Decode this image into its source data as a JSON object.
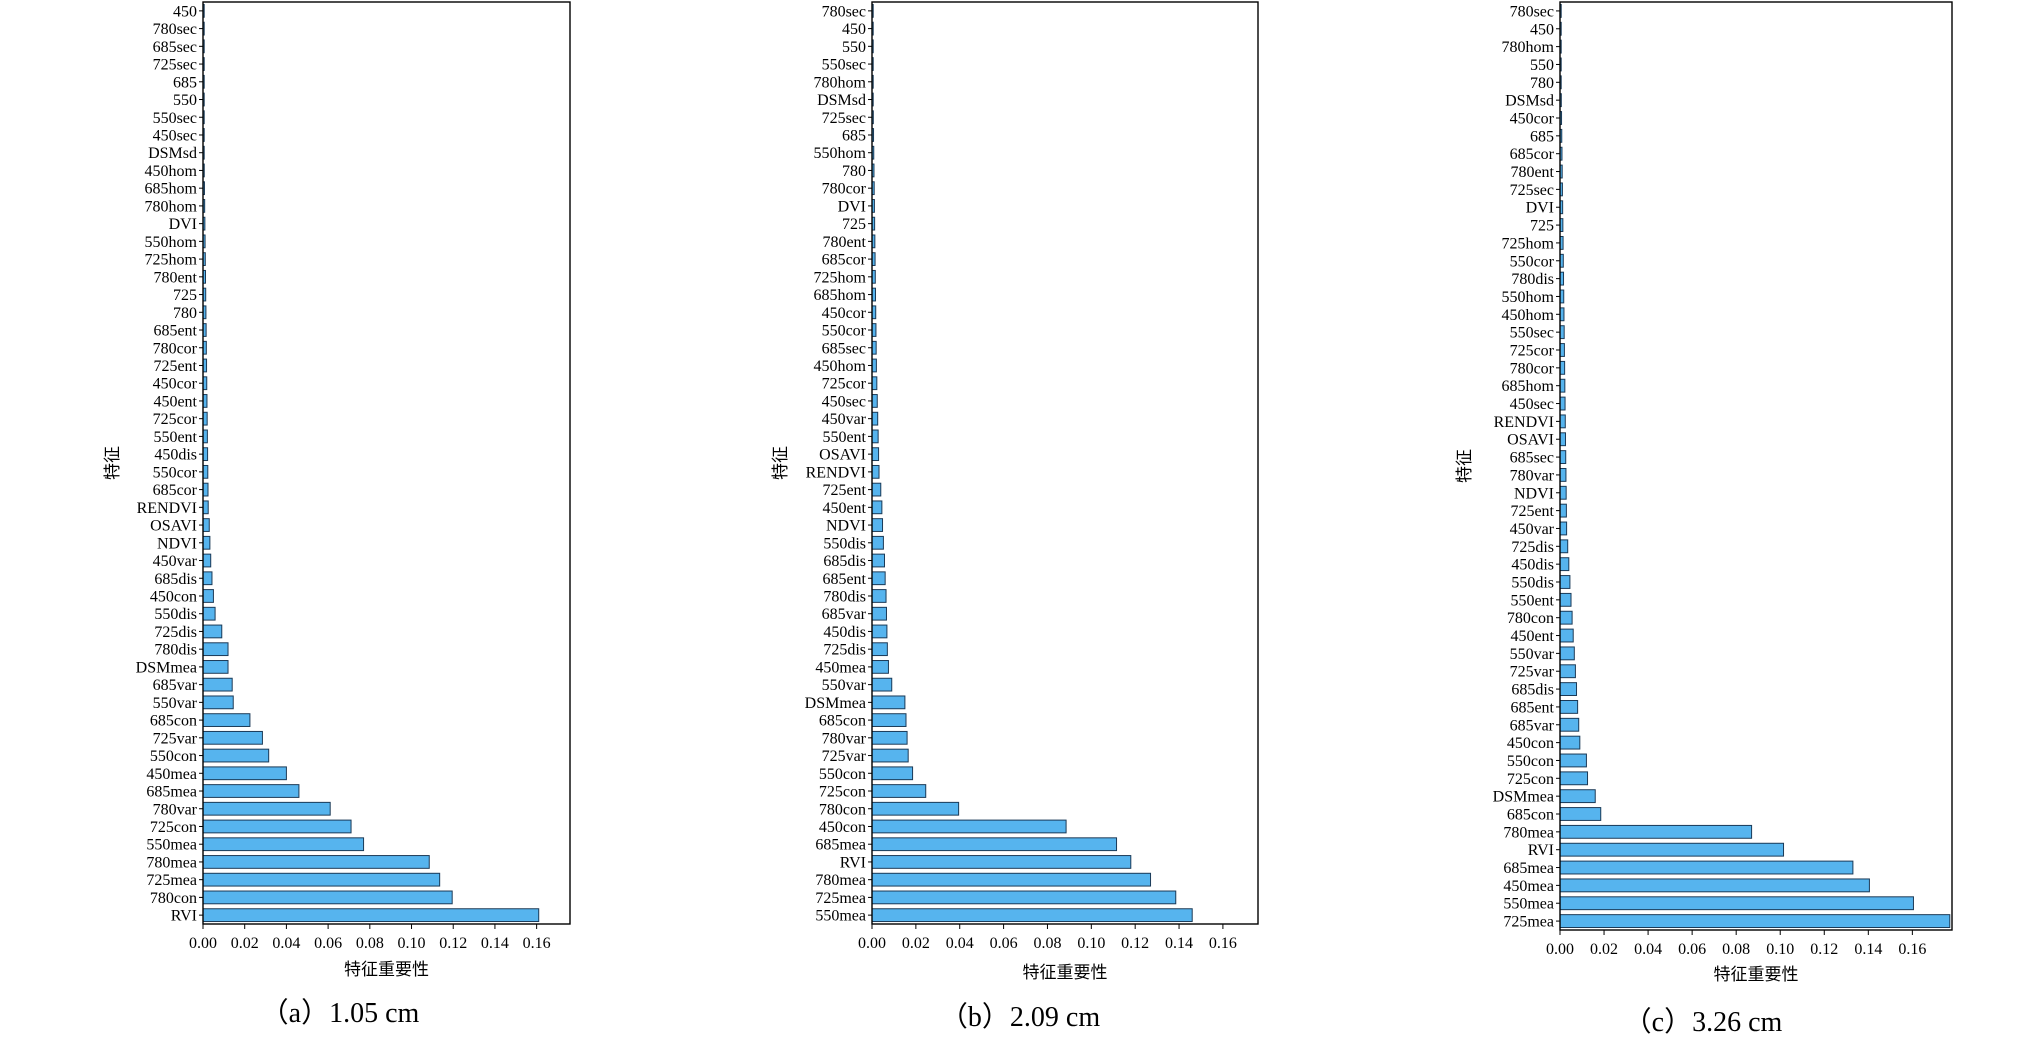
{
  "colors": {
    "bar": "#56b4ee",
    "bar_edge": "#1b3a57"
  },
  "chart_data": [
    {
      "type": "bar",
      "orientation": "horizontal",
      "caption": "（a）1.05 cm",
      "xlabel": "特征重要性",
      "ylabel": "特征",
      "xticks": [
        "0.00",
        "0.02",
        "0.04",
        "0.06",
        "0.08",
        "0.10",
        "0.12",
        "0.14",
        "0.16"
      ],
      "xlim": [
        0,
        0.176
      ],
      "grid": false,
      "categories": [
        "450",
        "780sec",
        "685sec",
        "725sec",
        "685",
        "550",
        "550sec",
        "450sec",
        "DSMsd",
        "450hom",
        "685hom",
        "780hom",
        "DVI",
        "550hom",
        "725hom",
        "780ent",
        "725",
        "780",
        "685ent",
        "780cor",
        "725ent",
        "450cor",
        "450ent",
        "725cor",
        "550ent",
        "450dis",
        "550cor",
        "685cor",
        "RENDVI",
        "OSAVI",
        "NDVI",
        "450var",
        "685dis",
        "450con",
        "550dis",
        "725dis",
        "780dis",
        "DSMmea",
        "685var",
        "550var",
        "685con",
        "725var",
        "550con",
        "450mea",
        "685mea",
        "780var",
        "725con",
        "550mea",
        "780mea",
        "725mea",
        "780con",
        "RVI"
      ],
      "values": [
        0.0001,
        0.0002,
        0.0002,
        0.0003,
        0.0003,
        0.0003,
        0.0004,
        0.0004,
        0.0005,
        0.0006,
        0.0007,
        0.0008,
        0.0009,
        0.001,
        0.0011,
        0.0012,
        0.0013,
        0.0014,
        0.0015,
        0.0016,
        0.0017,
        0.0018,
        0.0019,
        0.002,
        0.0021,
        0.0022,
        0.0023,
        0.0024,
        0.0025,
        0.003,
        0.0033,
        0.0037,
        0.0043,
        0.005,
        0.0058,
        0.009,
        0.012,
        0.012,
        0.014,
        0.0145,
        0.0225,
        0.0285,
        0.0315,
        0.04,
        0.046,
        0.061,
        0.071,
        0.077,
        0.1085,
        0.1135,
        0.1195,
        0.161
      ]
    },
    {
      "type": "bar",
      "orientation": "horizontal",
      "caption": "（b）2.09 cm",
      "xlabel": "特征重要性",
      "ylabel": "特征",
      "xticks": [
        "0.00",
        "0.02",
        "0.04",
        "0.06",
        "0.08",
        "0.10",
        "0.12",
        "0.14",
        "0.16"
      ],
      "xlim": [
        0,
        0.176
      ],
      "grid": false,
      "categories": [
        "780sec",
        "450",
        "550",
        "550sec",
        "780hom",
        "DSMsd",
        "725sec",
        "685",
        "550hom",
        "780",
        "780cor",
        "DVI",
        "725",
        "780ent",
        "685cor",
        "725hom",
        "685hom",
        "450cor",
        "550cor",
        "685sec",
        "450hom",
        "725cor",
        "450sec",
        "450var",
        "550ent",
        "OSAVI",
        "RENDVI",
        "725ent",
        "450ent",
        "NDVI",
        "550dis",
        "685dis",
        "685ent",
        "780dis",
        "685var",
        "450dis",
        "725dis",
        "450mea",
        "550var",
        "DSMmea",
        "685con",
        "780var",
        "725var",
        "550con",
        "725con",
        "780con",
        "450con",
        "685mea",
        "RVI",
        "780mea",
        "725mea",
        "550mea"
      ],
      "values": [
        0.0001,
        0.0002,
        0.0002,
        0.0003,
        0.0004,
        0.0005,
        0.0006,
        0.0007,
        0.0008,
        0.0009,
        0.001,
        0.0011,
        0.0012,
        0.0013,
        0.0014,
        0.0015,
        0.0016,
        0.0017,
        0.0018,
        0.0019,
        0.002,
        0.0022,
        0.0024,
        0.0026,
        0.0028,
        0.003,
        0.0032,
        0.004,
        0.0045,
        0.0048,
        0.0052,
        0.0057,
        0.006,
        0.0064,
        0.0066,
        0.0068,
        0.007,
        0.0075,
        0.009,
        0.015,
        0.0155,
        0.016,
        0.0165,
        0.0185,
        0.0245,
        0.0395,
        0.0885,
        0.1115,
        0.118,
        0.127,
        0.1385,
        0.146
      ]
    },
    {
      "type": "bar",
      "orientation": "horizontal",
      "caption": "（c）3.26 cm",
      "xlabel": "特征重要性",
      "ylabel": "特征",
      "xticks": [
        "0.00",
        "0.02",
        "0.04",
        "0.06",
        "0.08",
        "0.10",
        "0.12",
        "0.14",
        "0.16"
      ],
      "xlim": [
        0,
        0.178
      ],
      "grid": false,
      "categories": [
        "780sec",
        "450",
        "780hom",
        "550",
        "780",
        "DSMsd",
        "450cor",
        "685",
        "685cor",
        "780ent",
        "725sec",
        "DVI",
        "725",
        "725hom",
        "550cor",
        "780dis",
        "550hom",
        "450hom",
        "550sec",
        "725cor",
        "780cor",
        "685hom",
        "450sec",
        "RENDVI",
        "OSAVI",
        "685sec",
        "780var",
        "NDVI",
        "725ent",
        "450var",
        "725dis",
        "450dis",
        "550dis",
        "550ent",
        "780con",
        "450ent",
        "550var",
        "725var",
        "685dis",
        "685ent",
        "685var",
        "450con",
        "550con",
        "725con",
        "DSMmea",
        "685con",
        "780mea",
        "RVI",
        "685mea",
        "450mea",
        "550mea",
        "725mea"
      ],
      "values": [
        0.0001,
        0.0002,
        0.0003,
        0.0004,
        0.0005,
        0.0006,
        0.0007,
        0.0008,
        0.0009,
        0.001,
        0.0011,
        0.0012,
        0.0013,
        0.0014,
        0.0015,
        0.0016,
        0.0017,
        0.0018,
        0.0019,
        0.002,
        0.0021,
        0.0022,
        0.0023,
        0.0024,
        0.0025,
        0.0026,
        0.0027,
        0.0028,
        0.0029,
        0.003,
        0.0035,
        0.004,
        0.0045,
        0.005,
        0.0055,
        0.006,
        0.0065,
        0.007,
        0.0075,
        0.008,
        0.0085,
        0.009,
        0.012,
        0.0125,
        0.016,
        0.0185,
        0.087,
        0.1015,
        0.133,
        0.1405,
        0.1605,
        0.177
      ]
    }
  ]
}
